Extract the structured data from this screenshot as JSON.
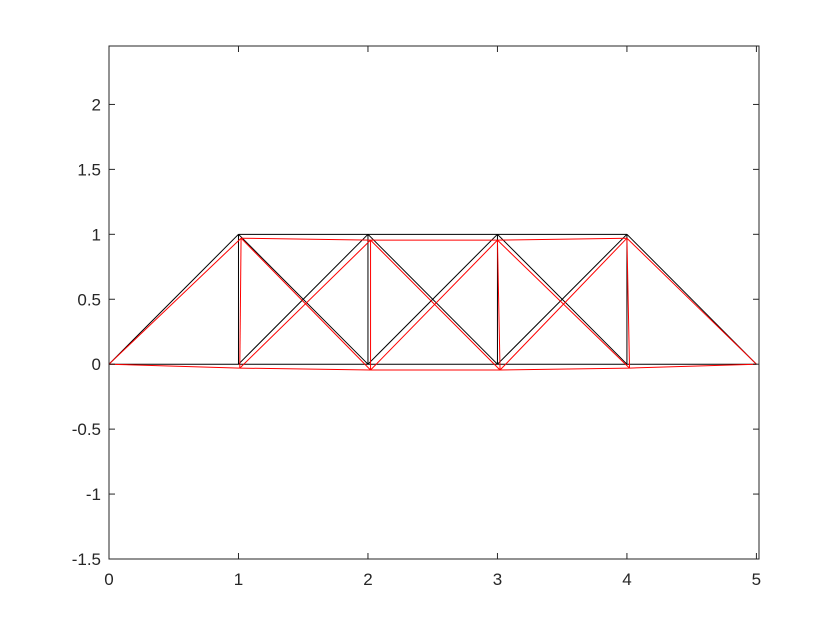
{
  "chart_data": {
    "type": "line",
    "title": "",
    "xlabel": "",
    "ylabel": "",
    "xlim": [
      0,
      5.02
    ],
    "ylim": [
      -1.5,
      2.45
    ],
    "grid": false,
    "box": true,
    "x_ticks": [
      {
        "value": 0,
        "label": "0"
      },
      {
        "value": 1,
        "label": "1"
      },
      {
        "value": 2,
        "label": "2"
      },
      {
        "value": 3,
        "label": "3"
      },
      {
        "value": 4,
        "label": "4"
      },
      {
        "value": 5,
        "label": "5"
      }
    ],
    "y_ticks": [
      {
        "value": -1.5,
        "label": "-1.5"
      },
      {
        "value": -1,
        "label": "-1"
      },
      {
        "value": -0.5,
        "label": "-0.5"
      },
      {
        "value": 0,
        "label": "0"
      },
      {
        "value": 0.5,
        "label": "0.5"
      },
      {
        "value": 1,
        "label": "1"
      },
      {
        "value": 1.5,
        "label": "1.5"
      },
      {
        "value": 2,
        "label": "2"
      }
    ],
    "series": [
      {
        "color": "#000000",
        "nodes": [
          [
            0,
            0
          ],
          [
            1,
            0
          ],
          [
            2,
            0
          ],
          [
            3,
            0
          ],
          [
            4,
            0
          ],
          [
            5,
            0
          ],
          [
            1,
            1
          ],
          [
            2,
            1
          ],
          [
            3,
            1
          ],
          [
            4,
            1
          ]
        ],
        "members": [
          [
            0,
            1
          ],
          [
            1,
            2
          ],
          [
            2,
            3
          ],
          [
            3,
            4
          ],
          [
            4,
            5
          ],
          [
            6,
            7
          ],
          [
            7,
            8
          ],
          [
            8,
            9
          ],
          [
            0,
            6
          ],
          [
            1,
            6
          ],
          [
            2,
            7
          ],
          [
            3,
            8
          ],
          [
            4,
            9
          ],
          [
            9,
            5
          ],
          [
            1,
            7
          ],
          [
            6,
            2
          ],
          [
            2,
            8
          ],
          [
            7,
            3
          ],
          [
            3,
            9
          ],
          [
            8,
            4
          ]
        ]
      },
      {
        "color": "#ff0000",
        "nodes": [
          [
            0,
            0
          ],
          [
            1.01,
            -0.03
          ],
          [
            2.02,
            -0.045
          ],
          [
            3.02,
            -0.045
          ],
          [
            4.02,
            -0.03
          ],
          [
            5,
            0
          ],
          [
            1.02,
            0.97
          ],
          [
            2.02,
            0.955
          ],
          [
            3.0,
            0.955
          ],
          [
            4.0,
            0.97
          ]
        ],
        "members": [
          [
            0,
            1
          ],
          [
            1,
            2
          ],
          [
            2,
            3
          ],
          [
            3,
            4
          ],
          [
            4,
            5
          ],
          [
            6,
            7
          ],
          [
            7,
            8
          ],
          [
            8,
            9
          ],
          [
            0,
            6
          ],
          [
            1,
            6
          ],
          [
            2,
            7
          ],
          [
            3,
            8
          ],
          [
            4,
            9
          ],
          [
            9,
            5
          ],
          [
            1,
            7
          ],
          [
            6,
            2
          ],
          [
            2,
            8
          ],
          [
            7,
            3
          ],
          [
            3,
            9
          ],
          [
            8,
            4
          ]
        ]
      }
    ]
  }
}
